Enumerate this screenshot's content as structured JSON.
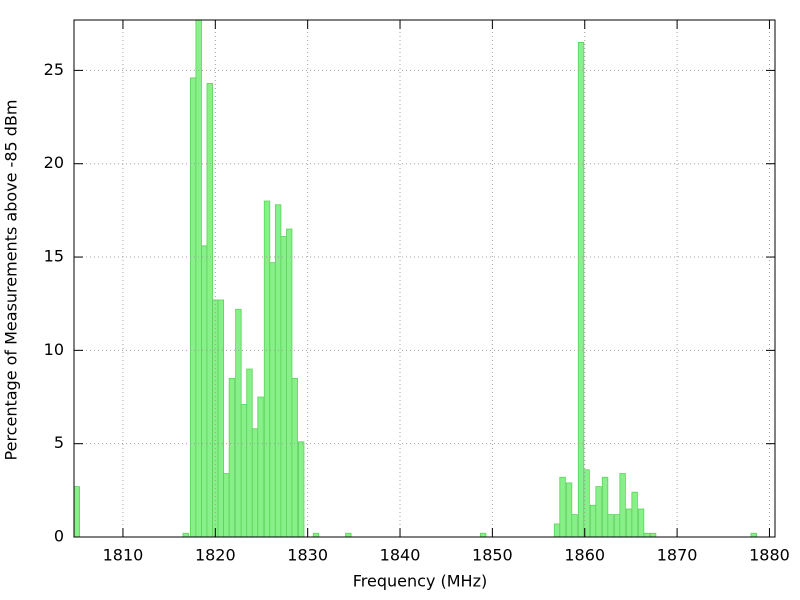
{
  "chart_data": {
    "type": "bar",
    "x_label": "Frequency (MHz)",
    "y_label": "Percentage of Measurements above -85 dBm",
    "x": [
      1805.0,
      1816.8,
      1817.6,
      1818.2,
      1818.8,
      1819.4,
      1820.0,
      1820.6,
      1821.2,
      1821.8,
      1822.5,
      1823.1,
      1823.7,
      1824.3,
      1824.9,
      1825.6,
      1826.2,
      1826.8,
      1827.4,
      1828.0,
      1828.6,
      1829.3,
      1830.9,
      1834.4,
      1849.0,
      1857.0,
      1857.6,
      1858.3,
      1858.9,
      1859.6,
      1860.2,
      1860.9,
      1861.5,
      1862.2,
      1862.8,
      1863.5,
      1864.1,
      1864.8,
      1865.4,
      1866.1,
      1866.7,
      1867.4,
      1878.3
    ],
    "values": [
      2.7,
      0.2,
      24.6,
      27.7,
      15.6,
      24.3,
      12.7,
      12.7,
      3.4,
      8.5,
      12.2,
      7.1,
      9.0,
      5.8,
      7.5,
      18.0,
      14.7,
      17.8,
      16.1,
      16.5,
      8.5,
      5.1,
      0.2,
      0.2,
      0.2,
      0.7,
      3.2,
      2.9,
      1.2,
      26.5,
      3.6,
      1.7,
      2.7,
      3.2,
      1.2,
      1.2,
      3.4,
      1.5,
      2.4,
      1.5,
      0.2,
      0.2,
      0.2
    ],
    "color": "#88f088",
    "xlim": [
      1804.7,
      1880.6
    ],
    "xticks": [
      1810,
      1820,
      1830,
      1840,
      1850,
      1860,
      1870,
      1880
    ],
    "ylim": [
      0,
      27.7
    ],
    "yticks": [
      0,
      5,
      10,
      15,
      20,
      25
    ],
    "grid": true
  }
}
